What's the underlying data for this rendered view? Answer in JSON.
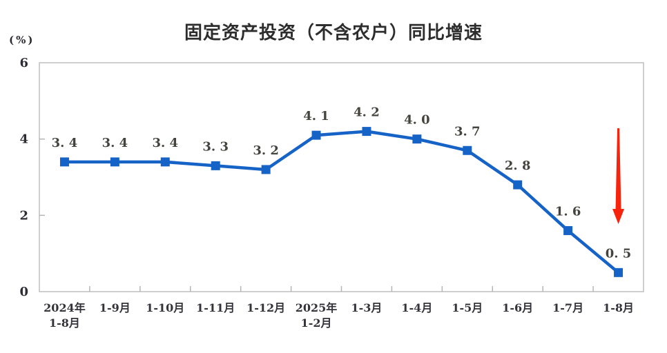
{
  "chart_data": {
    "type": "line",
    "title": "固定资产投资（不含农户）同比增速",
    "unit_label": "(%)",
    "categories": [
      [
        "2024年",
        "1-8月"
      ],
      [
        "1-9月"
      ],
      [
        "1-10月"
      ],
      [
        "1-11月"
      ],
      [
        "1-12月"
      ],
      [
        "2025年",
        "1-2月"
      ],
      [
        "1-3月"
      ],
      [
        "1-4月"
      ],
      [
        "1-5月"
      ],
      [
        "1-6月"
      ],
      [
        "1-7月"
      ],
      [
        "1-8月"
      ]
    ],
    "values": [
      3.4,
      3.4,
      3.4,
      3.3,
      3.2,
      4.1,
      4.2,
      4.0,
      3.7,
      2.8,
      1.6,
      0.5
    ],
    "point_labels": [
      "3. 4",
      "3. 4",
      "3. 4",
      "3. 3",
      "3. 2",
      "4. 1",
      "4. 2",
      "4. 0",
      "3. 7",
      "2. 8",
      "1. 6",
      "0. 5"
    ],
    "xlabel": "",
    "ylabel": "(%)",
    "ylim": [
      0,
      6
    ],
    "yticks": [
      0,
      2,
      4,
      6
    ],
    "grid": false,
    "legend_position": "none",
    "marker": "square",
    "colors": {
      "line": "#1663c7",
      "marker": "#1663c7",
      "frame": "#c2c2c2",
      "tick": "#b5b5b5",
      "annotation_arrow": "#f6230d"
    },
    "annotation": {
      "type": "down-arrow",
      "color": "#f6230d",
      "at_category_index": 11,
      "meaning": "sharp-decline-pointer"
    }
  }
}
